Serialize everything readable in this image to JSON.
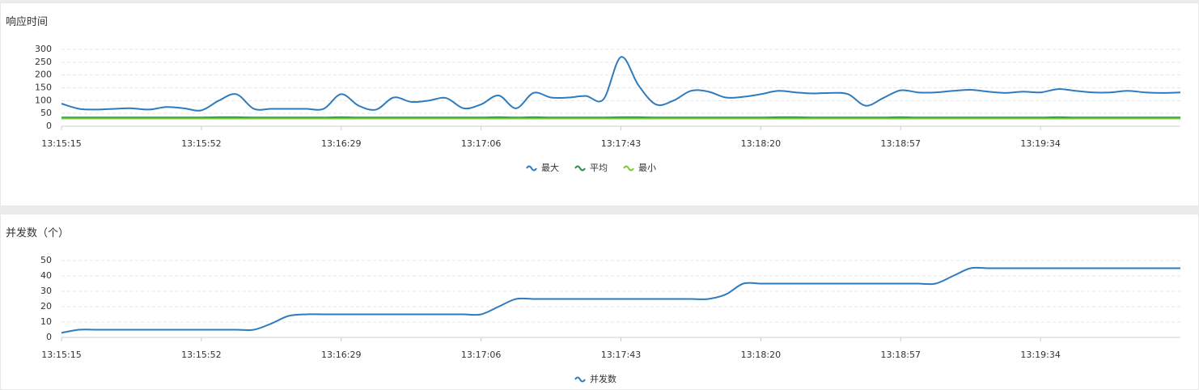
{
  "chart_data": [
    {
      "type": "line",
      "title": "响应时间",
      "categories": [
        "13:15:15",
        null,
        null,
        null,
        null,
        null,
        null,
        null,
        "13:15:52",
        null,
        null,
        null,
        null,
        null,
        null,
        null,
        "13:16:29",
        null,
        null,
        null,
        null,
        null,
        null,
        null,
        "13:17:06",
        null,
        null,
        null,
        null,
        null,
        null,
        null,
        "13:17:43",
        null,
        null,
        null,
        null,
        null,
        null,
        null,
        "13:18:20",
        null,
        null,
        null,
        null,
        null,
        null,
        null,
        "13:18:57",
        null,
        null,
        null,
        null,
        null,
        null,
        null,
        "13:19:34",
        null,
        null,
        null,
        null,
        null,
        null,
        null,
        null
      ],
      "series": [
        {
          "name": "最大",
          "color": "#2f7bbd",
          "values": [
            88,
            68,
            65,
            68,
            70,
            65,
            75,
            70,
            62,
            100,
            125,
            68,
            68,
            68,
            68,
            68,
            125,
            80,
            65,
            112,
            95,
            100,
            110,
            70,
            85,
            120,
            70,
            130,
            112,
            112,
            118,
            105,
            270,
            160,
            85,
            100,
            138,
            135,
            112,
            115,
            125,
            138,
            132,
            128,
            130,
            125,
            80,
            110,
            140,
            132,
            132,
            138,
            142,
            135,
            130,
            135,
            132,
            145,
            138,
            132,
            132,
            138,
            132,
            130,
            132
          ]
        },
        {
          "name": "平均",
          "color": "#2a8a4a",
          "values": [
            34,
            34,
            34,
            34,
            34,
            34,
            34,
            34,
            34,
            35,
            35,
            34,
            34,
            34,
            34,
            34,
            35,
            34,
            34,
            34,
            34,
            34,
            34,
            34,
            34,
            35,
            34,
            35,
            34,
            34,
            34,
            34,
            35,
            35,
            34,
            34,
            34,
            34,
            34,
            34,
            34,
            35,
            35,
            34,
            34,
            34,
            34,
            34,
            35,
            34,
            34,
            34,
            34,
            34,
            34,
            34,
            34,
            35,
            34,
            34,
            34,
            34,
            34,
            34,
            34
          ]
        },
        {
          "name": "最小",
          "color": "#7cc93a",
          "values": [
            30,
            30,
            30,
            30,
            30,
            30,
            30,
            30,
            30,
            30,
            30,
            30,
            30,
            30,
            30,
            30,
            30,
            30,
            30,
            30,
            30,
            30,
            30,
            30,
            30,
            30,
            30,
            30,
            30,
            30,
            30,
            30,
            30,
            30,
            30,
            30,
            30,
            30,
            30,
            30,
            30,
            30,
            30,
            30,
            30,
            30,
            30,
            30,
            30,
            30,
            30,
            30,
            30,
            30,
            30,
            30,
            30,
            30,
            30,
            30,
            30,
            30,
            30,
            30,
            30
          ]
        }
      ],
      "ylim": [
        0,
        300
      ],
      "yticks": [
        0,
        50,
        100,
        150,
        200,
        250,
        300
      ],
      "grid": true
    },
    {
      "type": "line",
      "title": "并发数（个）",
      "categories": [
        "13:15:15",
        null,
        null,
        null,
        null,
        null,
        null,
        null,
        "13:15:52",
        null,
        null,
        null,
        null,
        null,
        null,
        null,
        "13:16:29",
        null,
        null,
        null,
        null,
        null,
        null,
        null,
        "13:17:06",
        null,
        null,
        null,
        null,
        null,
        null,
        null,
        "13:17:43",
        null,
        null,
        null,
        null,
        null,
        null,
        null,
        "13:18:20",
        null,
        null,
        null,
        null,
        null,
        null,
        null,
        "13:18:57",
        null,
        null,
        null,
        null,
        null,
        null,
        null,
        "13:19:34",
        null,
        null,
        null,
        null,
        null,
        null,
        null,
        null
      ],
      "series": [
        {
          "name": "并发数",
          "color": "#2f7bbd",
          "values": [
            3,
            5,
            5,
            5,
            5,
            5,
            5,
            5,
            5,
            5,
            5,
            5,
            9,
            14,
            15,
            15,
            15,
            15,
            15,
            15,
            15,
            15,
            15,
            15,
            15,
            20,
            25,
            25,
            25,
            25,
            25,
            25,
            25,
            25,
            25,
            25,
            25,
            25,
            28,
            35,
            35,
            35,
            35,
            35,
            35,
            35,
            35,
            35,
            35,
            35,
            35,
            40,
            45,
            45,
            45,
            45,
            45,
            45,
            45,
            45,
            45,
            45,
            45,
            45,
            45
          ]
        }
      ],
      "ylim": [
        0,
        50
      ],
      "yticks": [
        0,
        10,
        20,
        30,
        40,
        50
      ],
      "grid": true
    }
  ]
}
